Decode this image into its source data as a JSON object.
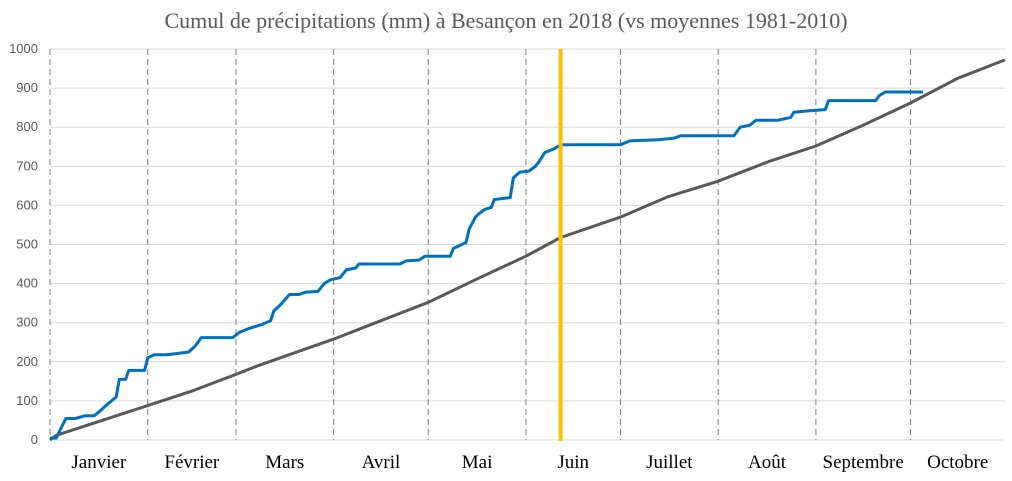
{
  "chart_data": {
    "type": "line",
    "title": "Cumul de précipitations (mm) à Besançon en 2018 (vs moyennes 1981-2010)",
    "xlabel": "",
    "ylabel": "",
    "x_unit": "day of year (0 = 1 January)",
    "xlim": [
      0,
      303
    ],
    "ylim": [
      0,
      1000
    ],
    "yticks": [
      0,
      100,
      200,
      300,
      400,
      500,
      600,
      700,
      800,
      900,
      1000
    ],
    "grid": true,
    "months": [
      {
        "label": "Janvier",
        "start": 0,
        "end": 31
      },
      {
        "label": "Février",
        "start": 31,
        "end": 59
      },
      {
        "label": "Mars",
        "start": 59,
        "end": 90
      },
      {
        "label": "Avril",
        "start": 90,
        "end": 120
      },
      {
        "label": "Mai",
        "start": 120,
        "end": 151
      },
      {
        "label": "Juin",
        "start": 151,
        "end": 181
      },
      {
        "label": "Juillet",
        "start": 181,
        "end": 212
      },
      {
        "label": "Août",
        "start": 212,
        "end": 243
      },
      {
        "label": "Septembre",
        "start": 243,
        "end": 273
      },
      {
        "label": "Octobre",
        "start": 273,
        "end": 303
      }
    ],
    "marker_day": 162,
    "series": [
      {
        "name": "2018",
        "color": "#0070C0",
        "x": [
          0,
          2,
          5,
          8,
          11,
          14,
          16,
          18,
          21,
          22,
          24,
          25,
          30,
          31,
          33,
          37,
          41,
          44,
          46,
          48,
          58,
          60,
          63,
          67,
          70,
          71,
          73,
          76,
          79,
          81,
          85,
          87,
          89,
          92,
          94,
          97,
          98,
          111,
          113,
          117,
          119,
          127,
          128,
          132,
          133,
          135,
          136,
          138,
          140,
          141,
          146,
          147,
          149,
          152,
          154,
          155,
          157,
          160,
          162,
          181,
          184,
          193,
          198,
          200,
          217,
          219,
          222,
          224,
          231,
          235,
          236,
          241,
          246,
          247,
          262,
          263,
          265,
          277
        ],
        "y": [
          5,
          5,
          55,
          55,
          62,
          62,
          75,
          90,
          110,
          155,
          155,
          178,
          178,
          210,
          218,
          218,
          222,
          225,
          240,
          262,
          262,
          275,
          285,
          295,
          305,
          330,
          345,
          372,
          372,
          378,
          380,
          400,
          410,
          415,
          435,
          440,
          450,
          450,
          458,
          460,
          470,
          470,
          490,
          505,
          540,
          570,
          578,
          590,
          595,
          615,
          620,
          670,
          685,
          688,
          700,
          710,
          735,
          745,
          755,
          755,
          765,
          768,
          772,
          778,
          778,
          800,
          805,
          818,
          818,
          825,
          838,
          842,
          845,
          868,
          868,
          880,
          890,
          890
        ]
      },
      {
        "name": "Moyenne 1981-2010",
        "color": "#595959",
        "x": [
          0,
          2,
          31,
          45,
          59,
          66,
          90,
          105,
          120,
          135,
          151,
          162,
          181,
          196,
          212,
          228,
          243,
          258,
          273,
          288,
          303
        ],
        "y": [
          0,
          12,
          88,
          125,
          168,
          190,
          258,
          305,
          352,
          410,
          470,
          518,
          570,
          622,
          662,
          712,
          752,
          805,
          862,
          925,
          972
        ]
      }
    ],
    "marker_color": "#FFC000"
  }
}
